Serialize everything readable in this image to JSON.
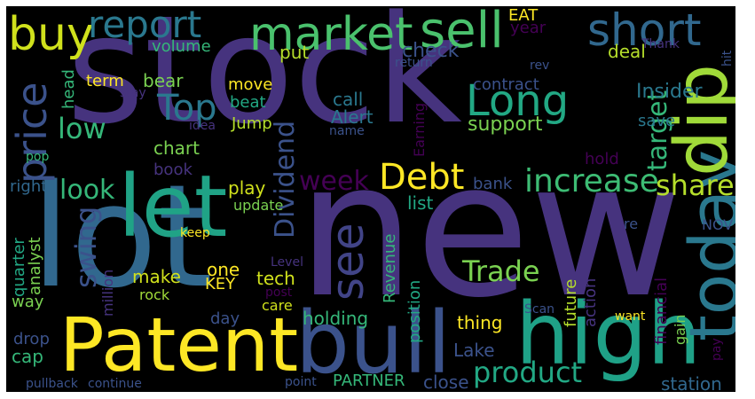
{
  "words": [
    {
      "text": "stock",
      "color": "#46337e"
    },
    {
      "text": "new",
      "color": "#46337e"
    },
    {
      "text": "lot",
      "color": "#31688e"
    },
    {
      "text": "Patent",
      "color": "#fde725"
    },
    {
      "text": "high",
      "color": "#1fa187"
    },
    {
      "text": "bull",
      "color": "#3b528b"
    },
    {
      "text": "let",
      "color": "#20a386"
    },
    {
      "text": "today",
      "color": "#2a788e"
    },
    {
      "text": "dip",
      "color": "#a0da39"
    },
    {
      "text": "market",
      "color": "#4ac16d"
    },
    {
      "text": "sell",
      "color": "#4ac16d"
    },
    {
      "text": "buy",
      "color": "#d0e11c"
    },
    {
      "text": "report",
      "color": "#2a788e"
    },
    {
      "text": "short",
      "color": "#31688e"
    },
    {
      "text": "Long",
      "color": "#22a884"
    },
    {
      "text": "price",
      "color": "#3b528b"
    },
    {
      "text": "Top",
      "color": "#2a788e"
    },
    {
      "text": "Debt",
      "color": "#fde725"
    },
    {
      "text": "increase",
      "color": "#3dbc74"
    },
    {
      "text": "share",
      "color": "#b5de2b"
    },
    {
      "text": "see",
      "color": "#414487"
    },
    {
      "text": "Trade",
      "color": "#7ad151"
    },
    {
      "text": "product",
      "color": "#22a884"
    },
    {
      "text": "swing",
      "color": "#3b528b"
    },
    {
      "text": "Dividend",
      "color": "#3b528b"
    },
    {
      "text": "target",
      "color": "#35b779"
    },
    {
      "text": "low",
      "color": "#35b779"
    },
    {
      "text": "look",
      "color": "#35b779"
    },
    {
      "text": "week",
      "color": "#440154"
    },
    {
      "text": "EAT",
      "color": "#fde725"
    },
    {
      "text": "year",
      "color": "#440154"
    },
    {
      "text": "volume",
      "color": "#35b779"
    },
    {
      "text": "put",
      "color": "#b5de2b"
    },
    {
      "text": "check",
      "color": "#3b528b"
    },
    {
      "text": "deal",
      "color": "#b5de2b"
    },
    {
      "text": "Thank",
      "color": "#46337e"
    },
    {
      "text": "hit",
      "color": "#3b528b"
    },
    {
      "text": "head",
      "color": "#35b779"
    },
    {
      "text": "term",
      "color": "#fde725"
    },
    {
      "text": "bear",
      "color": "#7ad151"
    },
    {
      "text": "return",
      "color": "#3b528b"
    },
    {
      "text": "rev",
      "color": "#3b528b"
    },
    {
      "text": "contract",
      "color": "#3b528b"
    },
    {
      "text": "Insider",
      "color": "#2a788e"
    },
    {
      "text": "stay",
      "color": "#46337e"
    },
    {
      "text": "idea",
      "color": "#46337e"
    },
    {
      "text": "move",
      "color": "#fde725"
    },
    {
      "text": "beat",
      "color": "#22a884"
    },
    {
      "text": "call",
      "color": "#2a788e"
    },
    {
      "text": "Alert",
      "color": "#2a788e"
    },
    {
      "text": "name",
      "color": "#3b528b"
    },
    {
      "text": "Jump",
      "color": "#b5de2b"
    },
    {
      "text": "Earning",
      "color": "#440154"
    },
    {
      "text": "support",
      "color": "#7ad151"
    },
    {
      "text": "save",
      "color": "#2a788e"
    },
    {
      "text": "chart",
      "color": "#7ad151"
    },
    {
      "text": "pop",
      "color": "#35b779"
    },
    {
      "text": "hold",
      "color": "#440154"
    },
    {
      "text": "book",
      "color": "#46337e"
    },
    {
      "text": "play",
      "color": "#d0e11c"
    },
    {
      "text": "bank",
      "color": "#3b528b"
    },
    {
      "text": "right",
      "color": "#31688e"
    },
    {
      "text": "update",
      "color": "#7ad151"
    },
    {
      "text": "list",
      "color": "#22a884"
    },
    {
      "text": "re",
      "color": "#3b528b"
    },
    {
      "text": "NOV",
      "color": "#3b528b"
    },
    {
      "text": "keep",
      "color": "#fde725"
    },
    {
      "text": "Level",
      "color": "#46337e"
    },
    {
      "text": "one",
      "color": "#fde725"
    },
    {
      "text": "KEY",
      "color": "#fde725"
    },
    {
      "text": "make",
      "color": "#d0e11c"
    },
    {
      "text": "rock",
      "color": "#a0da39"
    },
    {
      "text": "tech",
      "color": "#d0e11c"
    },
    {
      "text": "post",
      "color": "#440154"
    },
    {
      "text": "care",
      "color": "#d0e11c"
    },
    {
      "text": "quarter",
      "color": "#22a884"
    },
    {
      "text": "analyst",
      "color": "#7ad151"
    },
    {
      "text": "way",
      "color": "#7ad151"
    },
    {
      "text": "million",
      "color": "#46337e"
    },
    {
      "text": "Revenue",
      "color": "#35b779"
    },
    {
      "text": "position",
      "color": "#22a884"
    },
    {
      "text": "future",
      "color": "#b5de2b"
    },
    {
      "text": "financial",
      "color": "#440154"
    },
    {
      "text": "gain",
      "color": "#7ad151"
    },
    {
      "text": "action",
      "color": "#46337e"
    },
    {
      "text": "want",
      "color": "#fde725"
    },
    {
      "text": "pay",
      "color": "#440154"
    },
    {
      "text": "Scan",
      "color": "#3b528b"
    },
    {
      "text": "drop",
      "color": "#3b528b"
    },
    {
      "text": "day",
      "color": "#3b528b"
    },
    {
      "text": "holding",
      "color": "#35b779"
    },
    {
      "text": "thing",
      "color": "#fde725"
    },
    {
      "text": "cap",
      "color": "#35b779"
    },
    {
      "text": "Lake",
      "color": "#3b528b"
    },
    {
      "text": "PARTNER",
      "color": "#35b779"
    },
    {
      "text": "close",
      "color": "#3b528b"
    },
    {
      "text": "station",
      "color": "#31688e"
    },
    {
      "text": "pullback",
      "color": "#3b528b"
    },
    {
      "text": "continue",
      "color": "#3b528b"
    },
    {
      "text": "point",
      "color": "#3b528b"
    }
  ]
}
